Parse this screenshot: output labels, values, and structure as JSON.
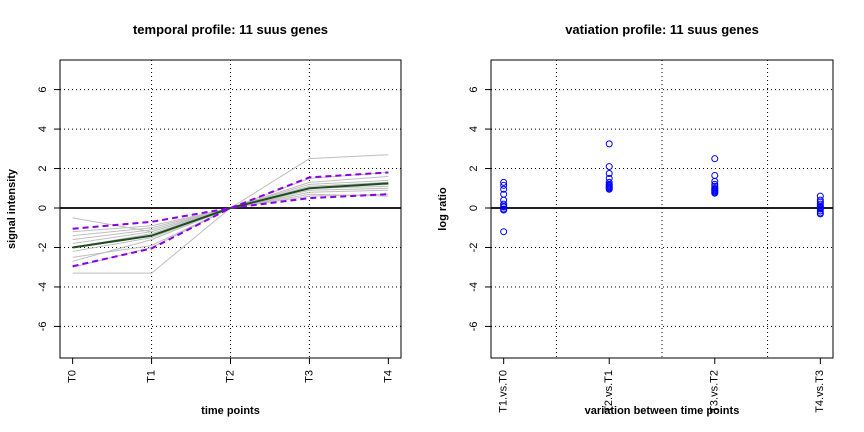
{
  "chart_data": [
    {
      "type": "line",
      "title": "temporal profile: 11 suus genes",
      "x_label": "time points",
      "y_label": "signal intensity",
      "categories": [
        "T0",
        "T1",
        "T2",
        "T3",
        "T4"
      ],
      "ylim": [
        -7.6,
        7.5
      ],
      "yticks": [
        -6,
        -4,
        -2,
        0,
        2,
        4,
        6
      ],
      "grid": true,
      "reference_line": 0,
      "series": [
        {
          "color": "#bebebe",
          "values": [
            -3.3,
            -3.3,
            0,
            0.7,
            0.6
          ]
        },
        {
          "color": "#bebebe",
          "values": [
            -2.5,
            -1.9,
            0,
            0.9,
            1.0
          ]
        },
        {
          "color": "#bebebe",
          "values": [
            -2.2,
            -1.5,
            0,
            1.0,
            1.2
          ]
        },
        {
          "color": "#bebebe",
          "values": [
            -2.0,
            -1.3,
            0,
            1.1,
            1.3
          ]
        },
        {
          "color": "#bebebe",
          "values": [
            -1.8,
            -1.2,
            0,
            1.2,
            1.4
          ]
        },
        {
          "color": "#bebebe",
          "values": [
            -1.6,
            -1.1,
            0,
            1.0,
            1.1
          ]
        },
        {
          "color": "#bebebe",
          "values": [
            -1.4,
            -1.0,
            0,
            1.3,
            1.6
          ]
        },
        {
          "color": "#bebebe",
          "values": [
            -0.5,
            -1.2,
            0,
            2.5,
            2.7
          ]
        },
        {
          "color": "#bebebe",
          "values": [
            -2.7,
            -1.6,
            0,
            0.8,
            0.9
          ]
        },
        {
          "color": "#bebebe",
          "values": [
            -1.2,
            -0.9,
            0,
            1.5,
            1.8
          ]
        },
        {
          "color": "#bebebe",
          "values": [
            -3.0,
            -2.0,
            0,
            0.6,
            0.7
          ]
        },
        {
          "color": "#1f4d1f",
          "values": [
            -2.0,
            -1.4,
            0,
            1.0,
            1.25
          ]
        },
        {
          "color": "#8a00e6",
          "dashed": true,
          "values": [
            -1.05,
            -0.7,
            0,
            1.55,
            1.8
          ]
        },
        {
          "color": "#8a00e6",
          "dashed": true,
          "values": [
            -2.95,
            -2.05,
            0,
            0.5,
            0.7
          ]
        }
      ]
    },
    {
      "type": "strip",
      "title": "vatiation profile: 11 suus genes",
      "x_label": "variation between time points",
      "y_label": "log ratio",
      "categories": [
        "T1.vs.T0",
        "T2.vs.T1",
        "T3.vs.T2",
        "T4.vs.T3"
      ],
      "ylim": [
        -7.6,
        7.5
      ],
      "yticks": [
        -6,
        -4,
        -2,
        0,
        2,
        4,
        6
      ],
      "grid": true,
      "reference_line": 0,
      "color": "#0000ff",
      "values": [
        [
          1.3,
          1.15,
          0.95,
          0.7,
          0.4,
          0.2,
          0.1,
          0.05,
          -0.05,
          -0.1,
          -1.2
        ],
        [
          3.25,
          2.1,
          1.75,
          1.5,
          1.3,
          1.2,
          1.15,
          1.1,
          1.05,
          1.0,
          0.95
        ],
        [
          2.5,
          1.65,
          1.35,
          1.2,
          1.1,
          1.0,
          0.95,
          0.9,
          0.85,
          0.8,
          0.75
        ],
        [
          0.6,
          0.4,
          0.3,
          0.2,
          0.1,
          0.05,
          0,
          -0.05,
          -0.15,
          -0.25,
          -0.3
        ]
      ]
    }
  ]
}
